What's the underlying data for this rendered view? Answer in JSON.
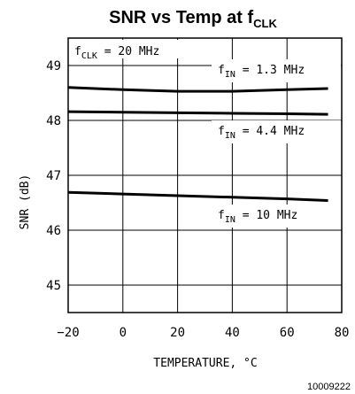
{
  "chart_data": {
    "type": "line",
    "title": {
      "main": "SNR vs Temp at f",
      "sub": "CLK"
    },
    "xlabel": {
      "main": "TEMPERATURE, ",
      "unit": "°C"
    },
    "ylabel": "SNR (dB)",
    "xlim": [
      -20,
      80
    ],
    "ylim": [
      44.5,
      49.5
    ],
    "xticks": [
      -20,
      0,
      20,
      40,
      60,
      80
    ],
    "yticks": [
      45,
      46,
      47,
      48,
      49
    ],
    "grid": true,
    "annotation": {
      "main": "f",
      "sub": "CLK",
      "rest": " = 20 MHz"
    },
    "series": [
      {
        "label": {
          "main": "f",
          "sub": "IN",
          "rest": " =  1.3 MHz"
        },
        "x": [
          -20,
          0,
          20,
          40,
          60,
          75
        ],
        "y": [
          48.6,
          48.56,
          48.53,
          48.53,
          48.56,
          48.58
        ]
      },
      {
        "label": {
          "main": "f",
          "sub": "IN",
          "rest": " =  4.4 MHz"
        },
        "x": [
          -20,
          0,
          20,
          40,
          60,
          75
        ],
        "y": [
          48.16,
          48.15,
          48.14,
          48.13,
          48.12,
          48.11
        ]
      },
      {
        "label": {
          "main": "f",
          "sub": "IN",
          "rest": " =  10 MHz"
        },
        "x": [
          -20,
          0,
          20,
          40,
          60,
          75
        ],
        "y": [
          46.69,
          46.66,
          46.63,
          46.6,
          46.57,
          46.54
        ]
      }
    ]
  },
  "figure_number": "10009222"
}
